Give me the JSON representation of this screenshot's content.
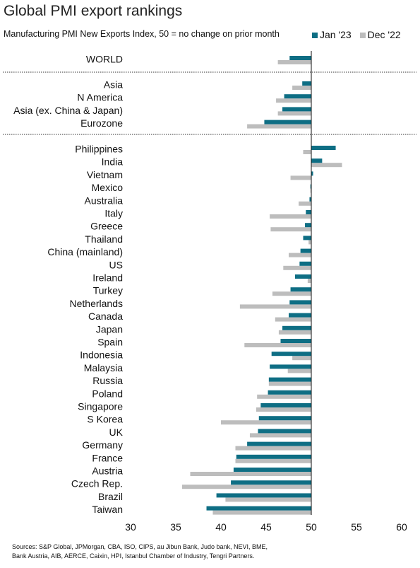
{
  "title": "Global PMI export rankings",
  "subtitle": "Manufacturing PMI New Exports Index, 50 = no change on prior month",
  "sources": [
    "Sources: S&P Global, JPMorgan, CBA, ISO, CIPS, au Jibun Bank, Judo bank, NEVI, BME,",
    "Bank Austria, AIB, AERCE, Caixin, HPI, Istanbul Chamber of Industry, Tengri Partners."
  ],
  "colors": {
    "jan": "#0e6e84",
    "dec": "#bdbdbd",
    "baseline": "#111111",
    "divider": "#333333"
  },
  "chart_data": {
    "type": "bar",
    "orientation": "horizontal",
    "baseline": 50,
    "xlim": [
      30,
      60
    ],
    "xticks": [
      "30",
      "35",
      "40",
      "45",
      "50",
      "55",
      "60"
    ],
    "legend_position": "top-right",
    "grid": false,
    "groups": [
      {
        "categories": [
          "WORLD"
        ]
      },
      {
        "categories": [
          "Asia",
          "N America",
          "Asia (ex. China & Japan)",
          "Eurozone"
        ]
      },
      {
        "categories": [
          "Philippines",
          "India",
          "Vietnam",
          "Mexico",
          "Australia",
          "Italy",
          "Greece",
          "Thailand",
          "China (mainland)",
          "US",
          "Ireland",
          "Turkey",
          "Netherlands",
          "Canada",
          "Japan",
          "Spain",
          "Indonesia",
          "Malaysia",
          "Russia",
          "Poland",
          "Singapore",
          "S Korea",
          "UK",
          "Germany",
          "France",
          "Austria",
          "Czech Rep.",
          "Brazil",
          "Taiwan"
        ]
      }
    ],
    "series": [
      {
        "name": "Jan '23",
        "values": [
          47.6,
          49.0,
          47.0,
          46.8,
          44.8,
          52.7,
          51.2,
          50.2,
          49.9,
          49.8,
          49.4,
          49.3,
          49.1,
          48.8,
          48.7,
          48.2,
          47.7,
          47.6,
          47.5,
          46.8,
          46.6,
          45.6,
          45.4,
          45.3,
          45.2,
          44.4,
          44.2,
          44.1,
          42.9,
          41.7,
          41.4,
          41.1,
          39.5,
          38.4
        ]
      },
      {
        "name": "Dec '22",
        "values": [
          46.3,
          47.9,
          46.1,
          46.3,
          42.9,
          49.1,
          53.4,
          47.7,
          49.9,
          48.6,
          45.4,
          45.5,
          49.7,
          47.5,
          46.9,
          49.6,
          45.7,
          42.1,
          46.0,
          46.4,
          42.6,
          47.9,
          47.4,
          45.3,
          44.0,
          43.9,
          40.0,
          43.2,
          41.6,
          41.6,
          36.6,
          35.7,
          40.5,
          39.1
        ]
      }
    ]
  }
}
